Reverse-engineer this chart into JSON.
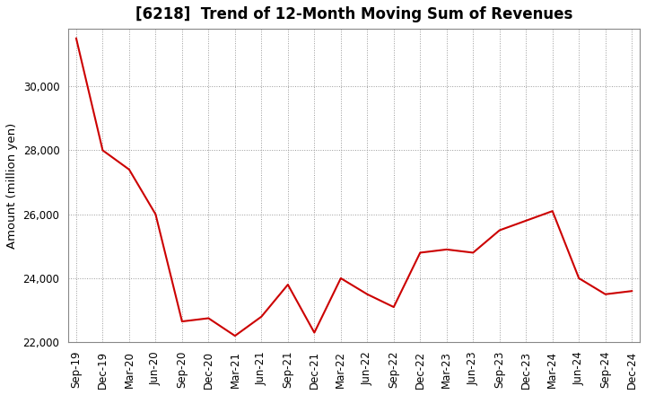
{
  "title": "[6218]  Trend of 12-Month Moving Sum of Revenues",
  "ylabel": "Amount (million yen)",
  "line_color": "#cc0000",
  "background_color": "#ffffff",
  "plot_bg_color": "#ffffff",
  "grid_color": "#999999",
  "title_fontsize": 12,
  "label_fontsize": 9.5,
  "tick_fontsize": 8.5,
  "ylim": [
    22000,
    31800
  ],
  "yticks": [
    22000,
    24000,
    26000,
    28000,
    30000
  ],
  "x_labels": [
    "Sep-19",
    "Dec-19",
    "Mar-20",
    "Jun-20",
    "Sep-20",
    "Dec-20",
    "Mar-21",
    "Jun-21",
    "Sep-21",
    "Dec-21",
    "Mar-22",
    "Jun-22",
    "Sep-22",
    "Dec-22",
    "Mar-23",
    "Jun-23",
    "Sep-23",
    "Dec-23",
    "Mar-24",
    "Jun-24",
    "Sep-24",
    "Dec-24"
  ],
  "values": [
    31500,
    28000,
    27400,
    26000,
    22650,
    22750,
    22200,
    22800,
    23800,
    22300,
    24000,
    23500,
    23100,
    24800,
    24900,
    24800,
    25500,
    25800,
    26100,
    24000,
    23500,
    23600
  ]
}
